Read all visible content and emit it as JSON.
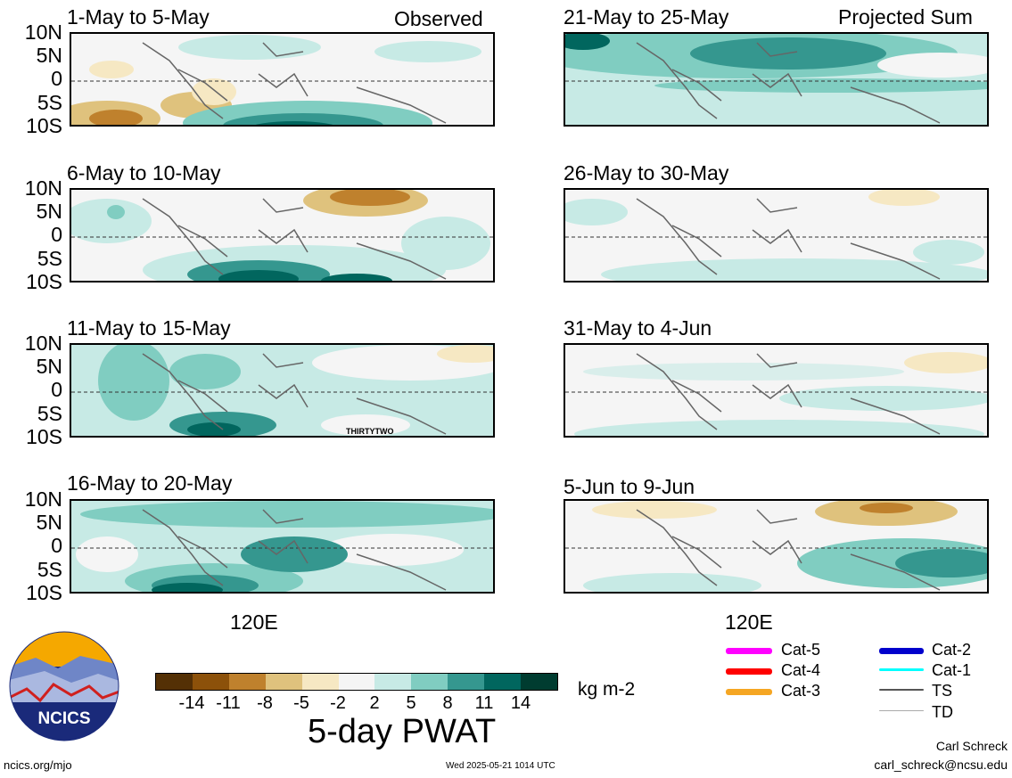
{
  "panels_left": [
    {
      "title": "1-May to 5-May",
      "corner": "Observed"
    },
    {
      "title": "6-May to 10-May",
      "corner": ""
    },
    {
      "title": "11-May to 15-May",
      "corner": ""
    },
    {
      "title": "16-May to 20-May",
      "corner": ""
    }
  ],
  "panels_right": [
    {
      "title": "21-May to 25-May",
      "corner": "Projected Sum"
    },
    {
      "title": "26-May to 30-May",
      "corner": ""
    },
    {
      "title": "31-May to 4-Jun",
      "corner": ""
    },
    {
      "title": "5-Jun to 9-Jun",
      "corner": ""
    }
  ],
  "lat_labels": [
    "10N",
    "5N",
    "0",
    "5S",
    "10S"
  ],
  "lon_label": "120E",
  "storm_label": "THIRTYTWO",
  "colorbar": {
    "ticks": [
      "-14",
      "-11",
      "-8",
      "-5",
      "-2",
      "2",
      "5",
      "8",
      "11",
      "14"
    ],
    "colors": [
      "#543005",
      "#8c510a",
      "#bf812d",
      "#dfc27d",
      "#f6e8c3",
      "#f5f5f5",
      "#c7eae5",
      "#80cdc1",
      "#35978f",
      "#01665e",
      "#003c30"
    ],
    "units": "kg m-2",
    "title": "5-day PWAT"
  },
  "legend": {
    "items": [
      {
        "label": "Cat-5",
        "color": "#ff00ff"
      },
      {
        "label": "Cat-4",
        "color": "#ff0000"
      },
      {
        "label": "Cat-3",
        "color": "#f5a623"
      },
      {
        "label": "Cat-2",
        "color": "#0000cc"
      },
      {
        "label": "Cat-1",
        "color": "#00ffff"
      },
      {
        "label": "TS",
        "color": "#555555"
      },
      {
        "label": "TD",
        "color": "#aaaaaa"
      }
    ]
  },
  "logo_text": "NCICS",
  "footer": {
    "website": "ncics.org/mjo",
    "timestamp": "Wed 2025-05-21 1014 UTC",
    "author": "Carl Schreck",
    "email": "carl_schreck@ncsu.edu"
  }
}
